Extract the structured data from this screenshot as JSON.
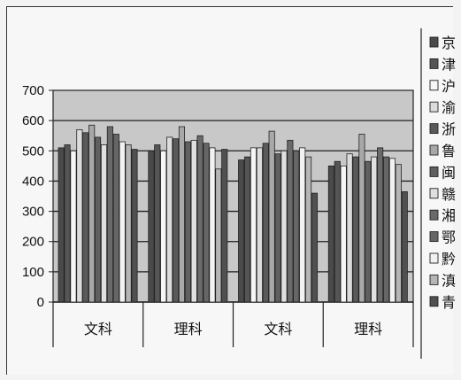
{
  "chart_data": {
    "type": "bar",
    "title": "",
    "xlabel": "",
    "ylabel": "",
    "ylim": [
      0,
      700
    ],
    "yticks": [
      0,
      100,
      200,
      300,
      400,
      500,
      600,
      700
    ],
    "categories": [
      "文科",
      "理科",
      "文科",
      "理科"
    ],
    "legend_position": "right",
    "series": [
      {
        "name": "京",
        "values": [
          510,
          500,
          470,
          450
        ]
      },
      {
        "name": "津",
        "values": [
          520,
          520,
          480,
          465
        ]
      },
      {
        "name": "沪",
        "values": [
          500,
          500,
          510,
          450
        ]
      },
      {
        "name": "渝",
        "values": [
          570,
          545,
          510,
          490
        ]
      },
      {
        "name": "浙",
        "values": [
          560,
          540,
          525,
          480
        ]
      },
      {
        "name": "鲁",
        "values": [
          585,
          580,
          565,
          555
        ]
      },
      {
        "name": "闽",
        "values": [
          545,
          530,
          490,
          465
        ]
      },
      {
        "name": "赣",
        "values": [
          520,
          535,
          500,
          480
        ]
      },
      {
        "name": "湘",
        "values": [
          580,
          550,
          535,
          510
        ]
      },
      {
        "name": "鄂",
        "values": [
          555,
          525,
          500,
          480
        ]
      },
      {
        "name": "黔",
        "values": [
          530,
          510,
          510,
          475
        ]
      },
      {
        "name": "滇",
        "values": [
          520,
          440,
          480,
          455
        ]
      },
      {
        "name": "青",
        "values": [
          505,
          505,
          360,
          365
        ]
      }
    ],
    "series_fills": [
      "#4a4a4a",
      "#555555",
      "#f6f6f6",
      "#dcdcdc",
      "#5a5a5a",
      "#a8a8a8",
      "#606060",
      "#e0e0e0",
      "#6a6a6a",
      "#666666",
      "#f2f2f2",
      "#b5b5b5",
      "#505050"
    ],
    "plot_band_fill": "#c8c8c8",
    "grid": true
  }
}
